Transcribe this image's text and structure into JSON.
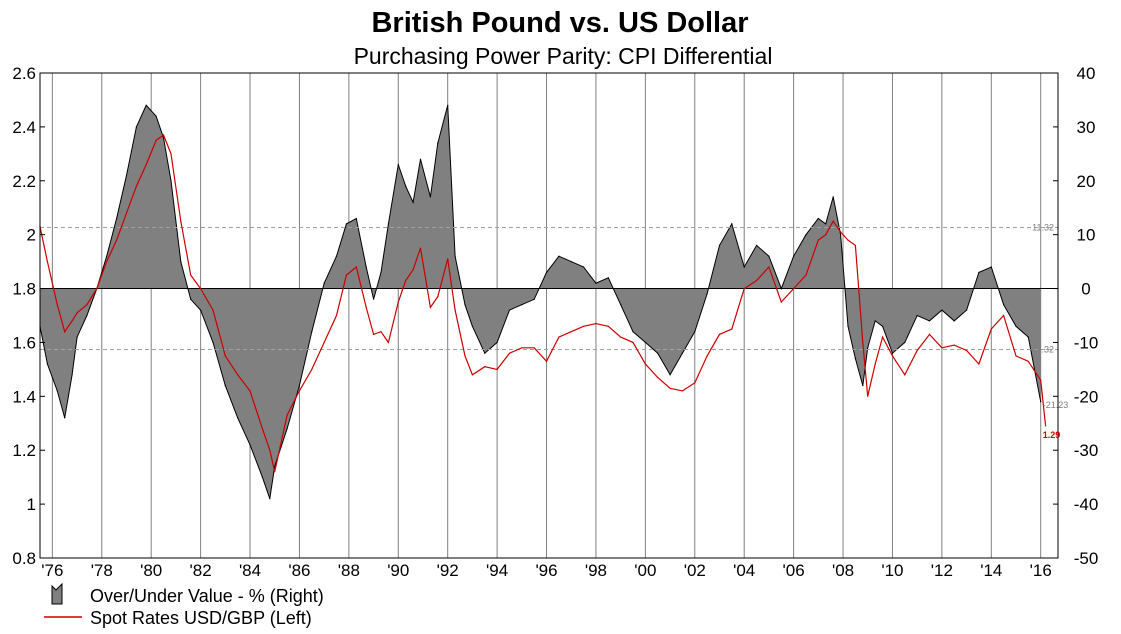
{
  "chart_data": {
    "type": "line",
    "title": "British Pound vs. US Dollar",
    "subtitle": "Purchasing Power Parity: CPI Differential",
    "y_left": {
      "min": 0.8,
      "max": 2.6,
      "ticks": [
        "0.8",
        "1",
        "1.2",
        "1.4",
        "1.6",
        "1.8",
        "2",
        "2.2",
        "2.4",
        "2.6"
      ]
    },
    "y_right": {
      "min": -50,
      "max": 40,
      "ticks": [
        "-50",
        "-40",
        "-30",
        "-20",
        "-10",
        "0",
        "10",
        "20",
        "30",
        "40"
      ]
    },
    "x_range": [
      1975.5,
      2016.7
    ],
    "x_ticks": [
      {
        "year": 1976,
        "label": "'76"
      },
      {
        "year": 1978,
        "label": "'78"
      },
      {
        "year": 1980,
        "label": "'80"
      },
      {
        "year": 1982,
        "label": "'82"
      },
      {
        "year": 1984,
        "label": "'84"
      },
      {
        "year": 1986,
        "label": "'86"
      },
      {
        "year": 1988,
        "label": "'88"
      },
      {
        "year": 1990,
        "label": "'90"
      },
      {
        "year": 1992,
        "label": "'92"
      },
      {
        "year": 1994,
        "label": "'94"
      },
      {
        "year": 1996,
        "label": "'96"
      },
      {
        "year": 1998,
        "label": "'98"
      },
      {
        "year": 2000,
        "label": "'00"
      },
      {
        "year": 2002,
        "label": "'02"
      },
      {
        "year": 2004,
        "label": "'04"
      },
      {
        "year": 2006,
        "label": "'06"
      },
      {
        "year": 2008,
        "label": "'08"
      },
      {
        "year": 2010,
        "label": "'10"
      },
      {
        "year": 2012,
        "label": "'12"
      },
      {
        "year": 2014,
        "label": "'14"
      },
      {
        "year": 2016,
        "label": "'16"
      }
    ],
    "grid": {
      "vertical": true,
      "horizontal": false
    },
    "reference_lines": [
      {
        "value": 11.32,
        "label": "11.32"
      },
      {
        "value": -11.32,
        "label": "-11.32"
      }
    ],
    "annotations": [
      {
        "x": 2016.0,
        "value": -21.23,
        "label": "-21.23",
        "axis": "right",
        "color": "#808080"
      },
      {
        "x": 2016.0,
        "value": 1.29,
        "label": "1.29",
        "axis": "left",
        "color": "#cc0000"
      }
    ],
    "series": [
      {
        "name": "Over/Under Value - %  (Right)",
        "kind": "area",
        "axis": "right",
        "fill": "#808080",
        "line": "#000000",
        "x": [
          1975.5,
          1975.8,
          1976.2,
          1976.5,
          1976.8,
          1977.0,
          1977.4,
          1977.8,
          1978.2,
          1978.6,
          1979.0,
          1979.4,
          1979.8,
          1980.2,
          1980.5,
          1980.8,
          1981.2,
          1981.6,
          1982.0,
          1982.5,
          1983.0,
          1983.5,
          1984.0,
          1984.5,
          1984.8,
          1985.0,
          1985.5,
          1986.0,
          1986.5,
          1987.0,
          1987.5,
          1987.9,
          1988.3,
          1988.7,
          1989.0,
          1989.3,
          1989.6,
          1990.0,
          1990.3,
          1990.6,
          1990.9,
          1991.3,
          1991.6,
          1992.0,
          1992.3,
          1992.7,
          1993.0,
          1993.5,
          1994.0,
          1994.5,
          1995.0,
          1995.5,
          1996.0,
          1996.5,
          1997.0,
          1997.5,
          1998.0,
          1998.5,
          1999.0,
          1999.5,
          2000.0,
          2000.5,
          2001.0,
          2001.5,
          2002.0,
          2002.5,
          2003.0,
          2003.5,
          2004.0,
          2004.5,
          2005.0,
          2005.5,
          2006.0,
          2006.5,
          2007.0,
          2007.3,
          2007.6,
          2007.9,
          2008.2,
          2008.5,
          2008.8,
          2009.0,
          2009.3,
          2009.6,
          2010.0,
          2010.5,
          2011.0,
          2011.5,
          2012.0,
          2012.5,
          2013.0,
          2013.5,
          2014.0,
          2014.5,
          2015.0,
          2015.5,
          2016.0
        ],
        "values": [
          -7,
          -14,
          -19,
          -24,
          -16,
          -9,
          -5,
          0,
          6,
          13,
          21,
          30,
          34,
          32,
          28,
          20,
          5,
          -2,
          -4,
          -10,
          -18,
          -24,
          -29,
          -35,
          -39,
          -33,
          -26,
          -18,
          -8,
          1,
          6,
          12,
          13,
          4,
          -2,
          3,
          12,
          23,
          19,
          16,
          24,
          17,
          27,
          34,
          6,
          -3,
          -7,
          -12,
          -10,
          -4,
          -3,
          -2,
          3,
          6,
          5,
          4,
          1,
          2,
          -3,
          -8,
          -10,
          -12,
          -16,
          -12,
          -8,
          -1,
          8,
          12,
          4,
          8,
          6,
          0,
          6,
          10,
          13,
          12,
          17,
          10,
          -7,
          -13,
          -18,
          -11,
          -6,
          -7,
          -12,
          -10,
          -5,
          -6,
          -4,
          -6,
          -4,
          3,
          4,
          -3,
          -7,
          -9,
          -21
        ]
      },
      {
        "name": "Spot Rates USD/GBP  (Left)",
        "kind": "line",
        "axis": "left",
        "color": "#cc0000",
        "x": [
          1975.5,
          1975.8,
          1976.2,
          1976.5,
          1976.8,
          1977.0,
          1977.4,
          1977.8,
          1978.2,
          1978.6,
          1979.0,
          1979.4,
          1979.8,
          1980.2,
          1980.5,
          1980.8,
          1981.2,
          1981.6,
          1982.0,
          1982.5,
          1983.0,
          1983.5,
          1984.0,
          1984.5,
          1984.8,
          1985.0,
          1985.5,
          1986.0,
          1986.5,
          1987.0,
          1987.5,
          1987.9,
          1988.3,
          1988.7,
          1989.0,
          1989.3,
          1989.6,
          1990.0,
          1990.3,
          1990.6,
          1990.9,
          1991.3,
          1991.6,
          1992.0,
          1992.3,
          1992.7,
          1993.0,
          1993.5,
          1994.0,
          1994.5,
          1995.0,
          1995.5,
          1996.0,
          1996.5,
          1997.0,
          1997.5,
          1998.0,
          1998.5,
          1999.0,
          1999.5,
          2000.0,
          2000.5,
          2001.0,
          2001.5,
          2002.0,
          2002.5,
          2003.0,
          2003.5,
          2004.0,
          2004.5,
          2005.0,
          2005.5,
          2006.0,
          2006.5,
          2007.0,
          2007.3,
          2007.6,
          2007.9,
          2008.2,
          2008.5,
          2008.8,
          2009.0,
          2009.3,
          2009.6,
          2010.0,
          2010.5,
          2011.0,
          2011.5,
          2012.0,
          2012.5,
          2013.0,
          2013.5,
          2014.0,
          2014.5,
          2015.0,
          2015.5,
          2016.0,
          2016.2
        ],
        "values": [
          2.03,
          1.9,
          1.74,
          1.64,
          1.68,
          1.71,
          1.74,
          1.8,
          1.9,
          1.98,
          2.08,
          2.18,
          2.26,
          2.35,
          2.37,
          2.3,
          2.05,
          1.85,
          1.8,
          1.72,
          1.55,
          1.48,
          1.42,
          1.28,
          1.2,
          1.12,
          1.33,
          1.42,
          1.5,
          1.6,
          1.7,
          1.85,
          1.88,
          1.73,
          1.63,
          1.64,
          1.6,
          1.75,
          1.83,
          1.87,
          1.95,
          1.73,
          1.77,
          1.91,
          1.72,
          1.55,
          1.48,
          1.51,
          1.5,
          1.56,
          1.58,
          1.58,
          1.53,
          1.62,
          1.64,
          1.66,
          1.67,
          1.66,
          1.62,
          1.6,
          1.52,
          1.47,
          1.43,
          1.42,
          1.45,
          1.55,
          1.63,
          1.65,
          1.8,
          1.83,
          1.88,
          1.75,
          1.8,
          1.85,
          1.98,
          2.0,
          2.05,
          2.01,
          1.98,
          1.96,
          1.6,
          1.4,
          1.52,
          1.62,
          1.55,
          1.48,
          1.57,
          1.63,
          1.58,
          1.59,
          1.57,
          1.52,
          1.65,
          1.7,
          1.55,
          1.53,
          1.46,
          1.29
        ]
      }
    ],
    "legend": {
      "position": "bottom-left"
    }
  }
}
